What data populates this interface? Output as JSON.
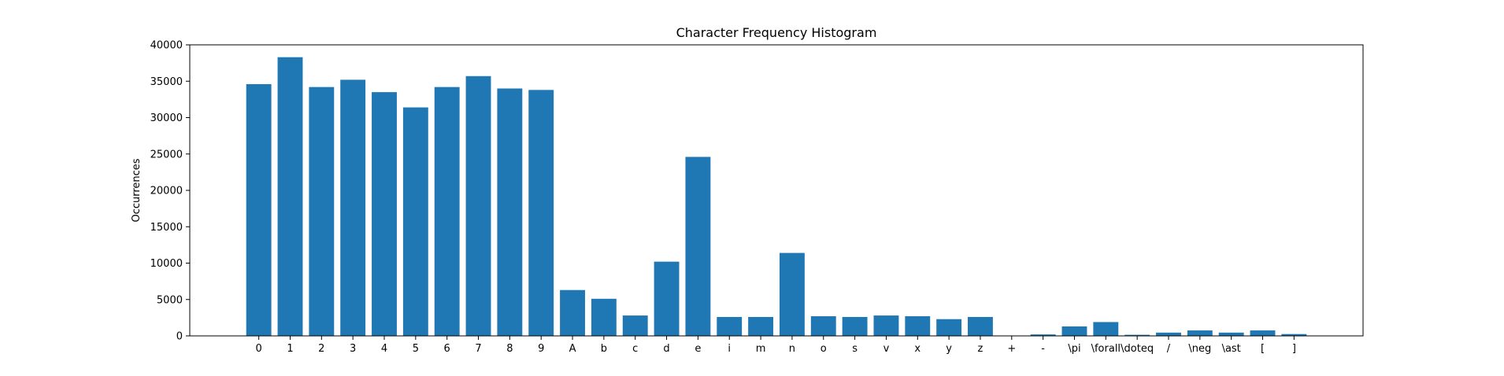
{
  "chart_data": {
    "type": "bar",
    "title": "Character Frequency Histogram",
    "xlabel": "",
    "ylabel": "Occurrences",
    "ylim": [
      0,
      40000
    ],
    "yticks": [
      0,
      5000,
      10000,
      15000,
      20000,
      25000,
      30000,
      35000,
      40000
    ],
    "grid": false,
    "bar_color": "#1f77b4",
    "categories": [
      "0",
      "1",
      "2",
      "3",
      "4",
      "5",
      "6",
      "7",
      "8",
      "9",
      "A",
      "b",
      "c",
      "d",
      "e",
      "i",
      "m",
      "n",
      "o",
      "s",
      "v",
      "x",
      "y",
      "z",
      "+",
      "-",
      "\\pi",
      "\\forall",
      "\\doteq",
      "/",
      "\\neg",
      "\\ast",
      "[",
      "]"
    ],
    "values": [
      34600,
      38300,
      34200,
      35200,
      33500,
      31400,
      34200,
      35700,
      34000,
      33800,
      6300,
      5100,
      2800,
      10200,
      24600,
      2600,
      2600,
      11400,
      2700,
      2600,
      2800,
      2700,
      2300,
      2600,
      50,
      200,
      1300,
      1900,
      150,
      450,
      750,
      450,
      750,
      250
    ]
  }
}
